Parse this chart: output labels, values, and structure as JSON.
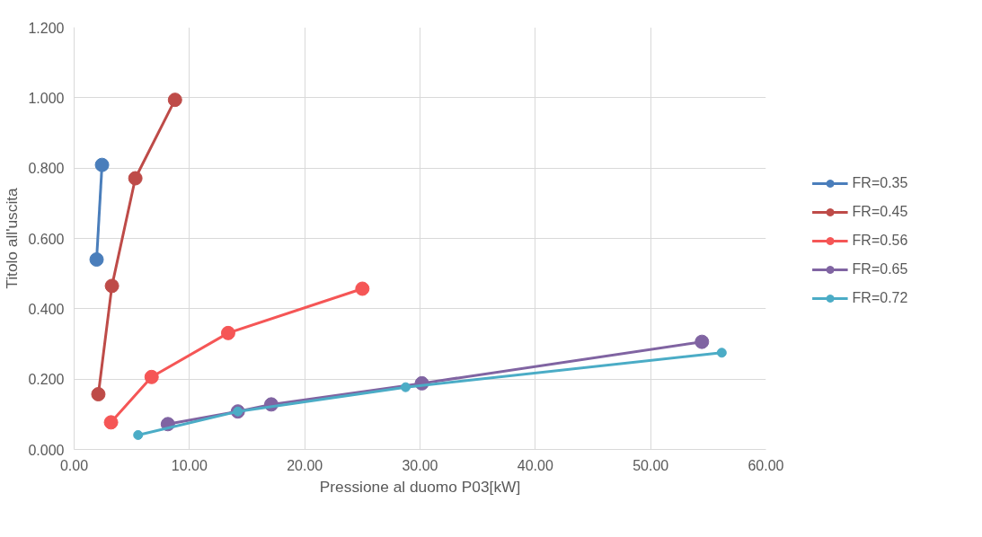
{
  "chart_data": {
    "type": "line",
    "xlabel": "Pressione al duomo P03[kW]",
    "ylabel": "Titolo all'uscita",
    "xlim": [
      0,
      60
    ],
    "ylim": [
      0,
      1.2
    ],
    "xticks": [
      {
        "value": 0,
        "label": "0.00"
      },
      {
        "value": 10,
        "label": "10.00"
      },
      {
        "value": 20,
        "label": "20.00"
      },
      {
        "value": 30,
        "label": "30.00"
      },
      {
        "value": 40,
        "label": "40.00"
      },
      {
        "value": 50,
        "label": "50.00"
      },
      {
        "value": 60,
        "label": "60.00"
      }
    ],
    "yticks": [
      {
        "value": 0,
        "label": "0.000"
      },
      {
        "value": 0.2,
        "label": "0.200"
      },
      {
        "value": 0.4,
        "label": "0.400"
      },
      {
        "value": 0.6,
        "label": "0.600"
      },
      {
        "value": 0.8,
        "label": "0.800"
      },
      {
        "value": 1.0,
        "label": "1.000"
      },
      {
        "value": 1.2,
        "label": "1.200"
      }
    ],
    "grid": true,
    "legend": "right",
    "marker": "circle",
    "line_style": "solid",
    "series": [
      {
        "name": "FR=0.35",
        "color": "#4a7ebb",
        "x": [
          1.95,
          2.42
        ],
        "values": [
          0.54,
          0.809
        ]
      },
      {
        "name": "FR=0.45",
        "color": "#be4b48",
        "x": [
          2.1,
          3.28,
          5.31,
          8.75
        ],
        "values": [
          0.157,
          0.465,
          0.771,
          0.994
        ]
      },
      {
        "name": "FR=0.56",
        "color": "#f55656",
        "x": [
          3.2,
          6.72,
          13.36,
          25.0
        ],
        "values": [
          0.077,
          0.206,
          0.331,
          0.457
        ]
      },
      {
        "name": "FR=0.65",
        "color": "#8064a2",
        "x": [
          8.13,
          14.2,
          17.1,
          30.16,
          54.45
        ],
        "values": [
          0.072,
          0.108,
          0.128,
          0.188,
          0.306
        ]
      },
      {
        "name": "FR=0.72",
        "color": "#4bacc6",
        "x": [
          5.55,
          14.2,
          28.75,
          56.17
        ],
        "values": [
          0.041,
          0.108,
          0.177,
          0.275
        ]
      }
    ]
  }
}
